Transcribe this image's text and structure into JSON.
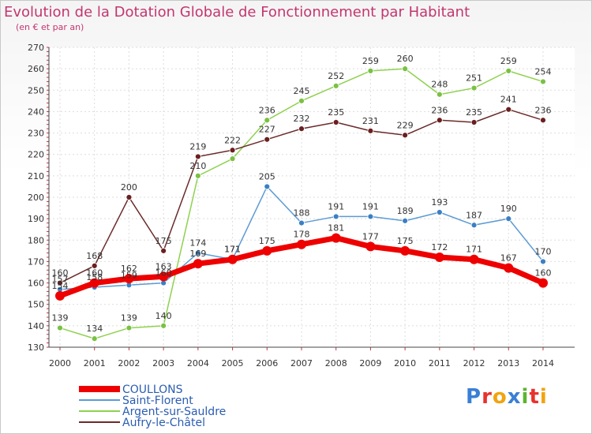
{
  "header": {
    "title": "Evolution de la Dotation Globale de Fonctionnement par Habitant",
    "subtitle": "(en € et par an)"
  },
  "logo": {
    "text": "Proxiti",
    "colors": [
      "#3a7fd5",
      "#e8322d",
      "#f2a30f",
      "#3a7fd5",
      "#5bb531",
      "#e8322d",
      "#f2a30f"
    ]
  },
  "chart_data": {
    "type": "line",
    "title": "Evolution de la Dotation Globale de Fonctionnement par Habitant",
    "subtitle": "(en € et par an)",
    "xlabel": "",
    "ylabel": "",
    "x": [
      "2000",
      "2001",
      "2002",
      "2003",
      "2004",
      "2005",
      "2006",
      "2007",
      "2008",
      "2009",
      "2010",
      "2011",
      "2012",
      "2013",
      "2014"
    ],
    "ylim": [
      130,
      270
    ],
    "yticks": [
      130,
      140,
      150,
      160,
      170,
      180,
      190,
      200,
      210,
      220,
      230,
      240,
      250,
      260,
      270
    ],
    "grid": true,
    "legend_position": "bottom-left",
    "series": [
      {
        "name": "Argent-sur-Sauldre",
        "color": "#8fd14f",
        "marker": "#7ac143",
        "values": [
          139,
          134,
          139,
          140,
          210,
          218,
          236,
          245,
          252,
          259,
          260,
          248,
          251,
          259,
          254
        ],
        "labels": [
          "139",
          "134",
          "139",
          "140",
          "210",
          "",
          "236",
          "245",
          "252",
          "259",
          "260",
          "248",
          "251",
          "259",
          "254"
        ]
      },
      {
        "name": "Aufry-le-Châtel",
        "color": "#6b2a2a",
        "marker": "#6b1f1f",
        "values": [
          160,
          168,
          200,
          175,
          219,
          222,
          227,
          232,
          235,
          231,
          229,
          236,
          235,
          241,
          236
        ],
        "labels": [
          "160",
          "168",
          "200",
          "175",
          "219",
          "222",
          "227",
          "232",
          "235",
          "231",
          "229",
          "236",
          "235",
          "241",
          "236"
        ]
      },
      {
        "name": "Saint-Florent",
        "color": "#5b9bd5",
        "marker": "#3b7fc4",
        "values": [
          157,
          158,
          159,
          160,
          174,
          171,
          205,
          188,
          191,
          191,
          189,
          193,
          187,
          190,
          170
        ],
        "labels": [
          "157",
          "158",
          "159",
          "160",
          "174",
          "171",
          "205",
          "188",
          "191",
          "191",
          "189",
          "193",
          "187",
          "190",
          "170"
        ]
      },
      {
        "name": "COULLONS",
        "color": "#ee0000",
        "marker": "#ee0000",
        "values": [
          154,
          160,
          162,
          163,
          169,
          171,
          175,
          178,
          181,
          177,
          175,
          172,
          171,
          167,
          160
        ],
        "labels": [
          "154",
          "160",
          "162",
          "163",
          "169",
          "171",
          "175",
          "178",
          "181",
          "177",
          "175",
          "172",
          "171",
          "167",
          "160"
        ]
      }
    ],
    "legend": [
      "COULLONS",
      "Saint-Florent",
      "Argent-sur-Sauldre",
      "Aufry-le-Châtel"
    ]
  }
}
